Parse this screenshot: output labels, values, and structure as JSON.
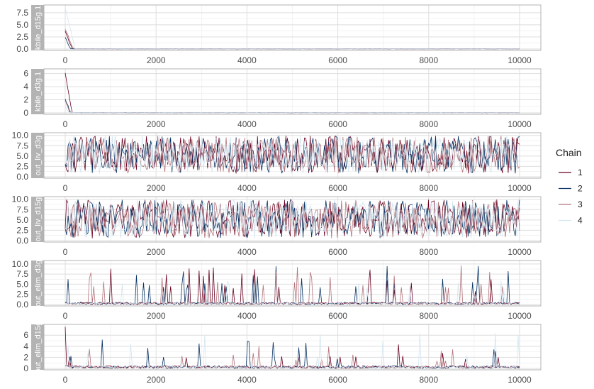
{
  "legend": {
    "title": "Chain",
    "position": "right",
    "items": [
      {
        "label": "1",
        "color": "#67001f"
      },
      {
        "label": "2",
        "color": "#053061"
      },
      {
        "label": "3",
        "color": "#b2737b"
      },
      {
        "label": "4",
        "color": "#d1e5f0"
      }
    ]
  },
  "chart_data": [
    {
      "type": "line",
      "strip_label": "kbile_d15g.1",
      "x_range": [
        0,
        10000
      ],
      "x_ticks": [
        0,
        2000,
        4000,
        6000,
        8000,
        10000
      ],
      "ylim": [
        0,
        8.8
      ],
      "y_ticks": [
        0.0,
        2.5,
        5.0,
        7.5
      ],
      "y_tick_labels": [
        "0.0",
        "2.5",
        "5.0",
        "7.5"
      ],
      "grid": true,
      "series": [
        {
          "name": "1",
          "color": "#67001f",
          "pattern": "burnin",
          "start": 3.8,
          "base": 0.03,
          "mix_end": 150,
          "sd": 0.03,
          "seed": 11
        },
        {
          "name": "2",
          "color": "#053061",
          "pattern": "burnin",
          "start": 2.5,
          "base": 0.03,
          "mix_end": 120,
          "sd": 0.03,
          "seed": 12
        },
        {
          "name": "3",
          "color": "#b2737b",
          "pattern": "burnin",
          "start": 4.2,
          "base": 0.03,
          "mix_end": 180,
          "sd": 0.03,
          "seed": 13
        },
        {
          "name": "4",
          "color": "#d1e5f0",
          "pattern": "burnin",
          "start": 8.5,
          "base": 0.03,
          "mix_end": 220,
          "sd": 0.03,
          "seed": 14
        }
      ]
    },
    {
      "type": "line",
      "strip_label": "kbile_d3g.1",
      "x_range": [
        0,
        10000
      ],
      "x_ticks": [
        0,
        2000,
        4000,
        6000,
        8000,
        10000
      ],
      "ylim": [
        0,
        6.5
      ],
      "y_ticks": [
        0,
        2,
        4,
        6
      ],
      "y_tick_labels": [
        "0",
        "2",
        "4",
        "6"
      ],
      "grid": true,
      "series": [
        {
          "name": "1",
          "color": "#67001f",
          "pattern": "burnin",
          "start": 6.2,
          "base": 0.03,
          "mix_end": 150,
          "sd": 0.03,
          "seed": 21
        },
        {
          "name": "2",
          "color": "#053061",
          "pattern": "burnin",
          "start": 2.2,
          "base": 0.03,
          "mix_end": 110,
          "sd": 0.03,
          "seed": 22
        },
        {
          "name": "3",
          "color": "#b2737b",
          "pattern": "burnin",
          "start": 2.0,
          "base": 0.03,
          "mix_end": 100,
          "sd": 0.03,
          "seed": 23
        },
        {
          "name": "4",
          "color": "#d1e5f0",
          "pattern": "burnin",
          "start": 1.0,
          "base": 0.03,
          "mix_end": 90,
          "sd": 0.03,
          "seed": 24
        }
      ]
    },
    {
      "type": "line",
      "strip_label": "out_liv_d3g",
      "x_range": [
        0,
        10000
      ],
      "x_ticks": [
        0,
        2000,
        4000,
        6000,
        8000,
        10000
      ],
      "ylim": [
        0,
        10.3
      ],
      "y_ticks": [
        0.0,
        2.5,
        5.0,
        7.5,
        10.0
      ],
      "y_tick_labels": [
        "0.0",
        "2.5",
        "5.0",
        "7.5",
        "10.0"
      ],
      "grid": true,
      "series": [
        {
          "name": "1",
          "color": "#67001f",
          "pattern": "uniform",
          "lo": 0.8,
          "hi": 9.9,
          "seed": 31
        },
        {
          "name": "2",
          "color": "#053061",
          "pattern": "uniform",
          "lo": 0.8,
          "hi": 9.9,
          "seed": 32
        },
        {
          "name": "3",
          "color": "#b2737b",
          "pattern": "uniform",
          "lo": 0.8,
          "hi": 9.9,
          "seed": 33
        },
        {
          "name": "4",
          "color": "#d1e5f0",
          "pattern": "uniform",
          "lo": 0.8,
          "hi": 9.9,
          "seed": 34
        }
      ]
    },
    {
      "type": "line",
      "strip_label": "out_liv_d15g",
      "x_range": [
        0,
        10000
      ],
      "x_ticks": [
        0,
        2000,
        4000,
        6000,
        8000,
        10000
      ],
      "ylim": [
        0,
        10.3
      ],
      "y_ticks": [
        0.0,
        2.5,
        5.0,
        7.5,
        10.0
      ],
      "y_tick_labels": [
        "0.0",
        "2.5",
        "5.0",
        "7.5",
        "10.0"
      ],
      "grid": true,
      "series": [
        {
          "name": "1",
          "color": "#67001f",
          "pattern": "uniform",
          "lo": 0.6,
          "hi": 9.9,
          "seed": 41
        },
        {
          "name": "2",
          "color": "#053061",
          "pattern": "uniform",
          "lo": 0.6,
          "hi": 9.9,
          "seed": 42
        },
        {
          "name": "3",
          "color": "#b2737b",
          "pattern": "uniform",
          "lo": 0.6,
          "hi": 9.9,
          "seed": 43
        },
        {
          "name": "4",
          "color": "#d1e5f0",
          "pattern": "uniform",
          "lo": 0.6,
          "hi": 9.9,
          "seed": 44
        }
      ]
    },
    {
      "type": "line",
      "strip_label": "out_elim_d3g",
      "x_range": [
        0,
        10000
      ],
      "x_ticks": [
        0,
        2000,
        4000,
        6000,
        8000,
        10000
      ],
      "ylim": [
        0,
        10.5
      ],
      "y_ticks": [
        0.0,
        2.5,
        5.0,
        7.5,
        10.0
      ],
      "y_tick_labels": [
        "0.0",
        "2.5",
        "5.0",
        "7.5",
        "10.0"
      ],
      "grid": true,
      "series": [
        {
          "name": "1",
          "color": "#67001f",
          "pattern": "spiky",
          "typical": 0.6,
          "spike_prob": 0.06,
          "spike_max": 9.8,
          "seed": 51
        },
        {
          "name": "2",
          "color": "#053061",
          "pattern": "spiky",
          "typical": 0.6,
          "spike_prob": 0.06,
          "spike_max": 9.5,
          "seed": 52
        },
        {
          "name": "3",
          "color": "#b2737b",
          "pattern": "spiky",
          "typical": 0.6,
          "spike_prob": 0.06,
          "spike_max": 9.6,
          "seed": 53
        },
        {
          "name": "4",
          "color": "#d1e5f0",
          "pattern": "spiky",
          "typical": 0.5,
          "spike_prob": 0.05,
          "spike_max": 6.0,
          "seed": 54
        }
      ]
    },
    {
      "type": "line",
      "strip_label": "out_elim_d15g",
      "x_range": [
        0,
        10000
      ],
      "x_ticks": [
        0,
        2000,
        4000,
        6000,
        8000,
        10000
      ],
      "ylim": [
        0,
        7.7
      ],
      "y_ticks": [
        0,
        2,
        4,
        6
      ],
      "y_tick_labels": [
        "0",
        "2",
        "4",
        "6"
      ],
      "grid": true,
      "series": [
        {
          "name": "1",
          "color": "#67001f",
          "pattern": "spiky",
          "typical": 0.5,
          "spike_prob": 0.05,
          "spike_max": 4.5,
          "first": 7.5,
          "seed": 61
        },
        {
          "name": "2",
          "color": "#053061",
          "pattern": "spiky",
          "typical": 0.5,
          "spike_prob": 0.05,
          "spike_max": 5.5,
          "seed": 62
        },
        {
          "name": "3",
          "color": "#b2737b",
          "pattern": "spiky",
          "typical": 0.5,
          "spike_prob": 0.05,
          "spike_max": 4.2,
          "seed": 63
        },
        {
          "name": "4",
          "color": "#d1e5f0",
          "pattern": "spiky",
          "typical": 0.5,
          "spike_prob": 0.04,
          "spike_max": 6.5,
          "seed": 64
        }
      ]
    }
  ]
}
